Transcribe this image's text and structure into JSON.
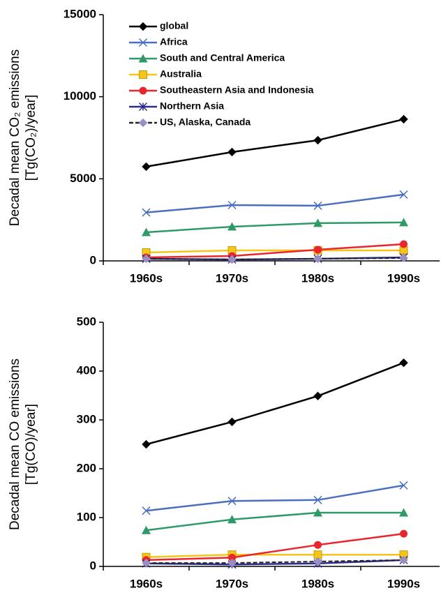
{
  "chart_data": [
    {
      "type": "line",
      "y_label": [
        "Decadal mean CO₂ emissions",
        "[Tg(CO₂)/year]"
      ],
      "categories": [
        "1960s",
        "1970s",
        "1980s",
        "1990s"
      ],
      "ylim": [
        0,
        15000
      ],
      "yticks": [
        0,
        5000,
        10000,
        15000
      ],
      "legend": "upper left",
      "series": [
        {
          "name": "global",
          "color": "#000000",
          "marker": "diamond",
          "values": [
            5740,
            6630,
            7350,
            8630
          ]
        },
        {
          "name": "Africa",
          "color": "#4a6fbf",
          "marker": "x",
          "values": [
            2950,
            3400,
            3360,
            4040
          ]
        },
        {
          "name": "South and Central America",
          "color": "#2e9a68",
          "marker": "triangle",
          "values": [
            1740,
            2080,
            2300,
            2340
          ]
        },
        {
          "name": "Australia",
          "color": "#f5c518",
          "marker": "square",
          "values": [
            510,
            640,
            640,
            640
          ]
        },
        {
          "name": "Southeastern Asia and Indonesia",
          "color": "#e8262b",
          "marker": "circle",
          "values": [
            210,
            300,
            680,
            1020
          ]
        },
        {
          "name": "Northern Asia",
          "color": "#2b2b8c",
          "marker": "star",
          "values": [
            130,
            85,
            130,
            210
          ]
        },
        {
          "name": "US, Alaska, Canada",
          "color": "#9a8fc0",
          "marker": "diamond-dashed",
          "values": [
            130,
            85,
            130,
            170
          ]
        }
      ]
    },
    {
      "type": "line",
      "y_label": [
        "Decadal mean CO emissions",
        "[Tg(CO)/year]"
      ],
      "categories": [
        "1960s",
        "1970s",
        "1980s",
        "1990s"
      ],
      "ylim": [
        0,
        500
      ],
      "yticks": [
        0,
        100,
        200,
        300,
        400,
        500
      ],
      "series": [
        {
          "color": "#000000",
          "marker": "diamond",
          "values": [
            250,
            296,
            349,
            417
          ]
        },
        {
          "color": "#4a6fbf",
          "marker": "x",
          "values": [
            114,
            134,
            136,
            166
          ]
        },
        {
          "color": "#2e9a68",
          "marker": "triangle",
          "values": [
            74,
            96,
            110,
            110
          ]
        },
        {
          "color": "#f5c518",
          "marker": "square",
          "values": [
            19,
            24,
            24,
            24
          ]
        },
        {
          "color": "#e8262b",
          "marker": "circle",
          "values": [
            13,
            18,
            44,
            67
          ]
        },
        {
          "color": "#2b2b8c",
          "marker": "star",
          "values": [
            6,
            4,
            6,
            13
          ]
        },
        {
          "color": "#9a8fc0",
          "marker": "diamond-dashed",
          "values": [
            7,
            7,
            10,
            13
          ]
        }
      ]
    }
  ]
}
